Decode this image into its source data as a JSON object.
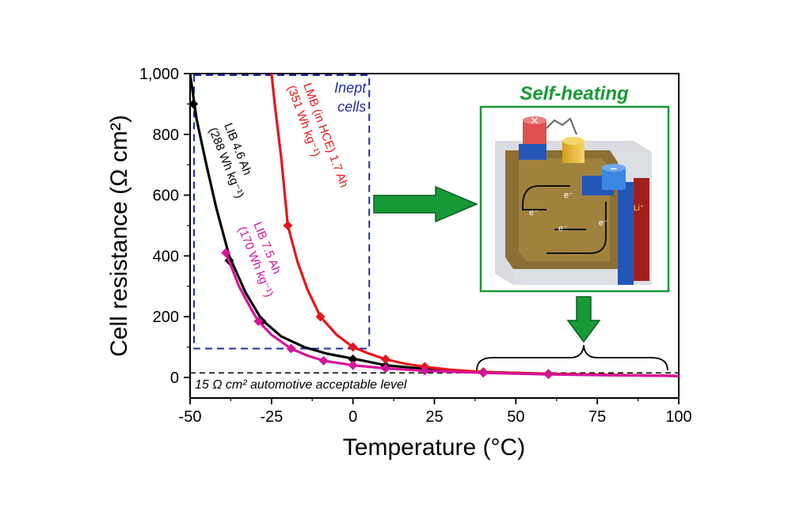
{
  "chart_data": {
    "type": "line",
    "xlabel": "Temperature (°C)",
    "ylabel": "Cell resistance (Ω cm²)",
    "xlim": [
      -50,
      100
    ],
    "ylim": [
      -50,
      1000
    ],
    "x_ticks": [
      "-50",
      "-25",
      "0",
      "25",
      "50",
      "75",
      "100"
    ],
    "x_tick_values": [
      -50,
      -25,
      0,
      25,
      50,
      75,
      100
    ],
    "y_ticks": [
      "0",
      "200",
      "400",
      "600",
      "800",
      "1,000"
    ],
    "y_tick_values": [
      0,
      200,
      400,
      600,
      800,
      1000
    ],
    "series": [
      {
        "name_lines": [
          "LIB 4.6 Ah",
          "(288 Wh kg⁻¹)"
        ],
        "color": "#000000",
        "marker": "diamond",
        "points": [
          [
            -49,
            900
          ],
          [
            -38,
            385
          ],
          [
            -28,
            185
          ],
          [
            0,
            60
          ],
          [
            10,
            38
          ],
          [
            22,
            28
          ],
          [
            40,
            18
          ],
          [
            60,
            12
          ]
        ],
        "curve": [
          [
            -50,
            1000
          ],
          [
            -48,
            850
          ],
          [
            -45,
            700
          ],
          [
            -42,
            560
          ],
          [
            -38,
            400
          ],
          [
            -33,
            280
          ],
          [
            -28,
            190
          ],
          [
            -22,
            135
          ],
          [
            -15,
            100
          ],
          [
            -8,
            78
          ],
          [
            0,
            62
          ],
          [
            10,
            40
          ],
          [
            22,
            28
          ],
          [
            40,
            18
          ],
          [
            60,
            12
          ],
          [
            80,
            8
          ],
          [
            100,
            5
          ]
        ]
      },
      {
        "name_lines": [
          "LMB (in HCE) 1.7 Ah",
          "(351 Wh kg⁻¹)"
        ],
        "color": "#e8141b",
        "marker": "diamond",
        "points": [
          [
            -20,
            500
          ],
          [
            -10,
            200
          ],
          [
            0,
            100
          ],
          [
            10,
            60
          ],
          [
            22,
            35
          ],
          [
            40,
            18
          ],
          [
            60,
            12
          ]
        ],
        "curve": [
          [
            -25,
            1000
          ],
          [
            -24,
            900
          ],
          [
            -22,
            720
          ],
          [
            -20,
            500
          ],
          [
            -17,
            380
          ],
          [
            -14,
            290
          ],
          [
            -10,
            200
          ],
          [
            -5,
            140
          ],
          [
            0,
            100
          ],
          [
            5,
            78
          ],
          [
            10,
            60
          ],
          [
            16,
            45
          ],
          [
            22,
            35
          ],
          [
            30,
            25
          ],
          [
            40,
            18
          ],
          [
            60,
            12
          ],
          [
            80,
            8
          ],
          [
            100,
            5
          ]
        ]
      },
      {
        "name_lines": [
          "LIB 7.5 Ah",
          "(170 Wh kg⁻¹)"
        ],
        "color": "#d4149c",
        "marker": "diamond",
        "points": [
          [
            -39,
            410
          ],
          [
            -29,
            185
          ],
          [
            -19,
            95
          ],
          [
            -9,
            55
          ],
          [
            0,
            40
          ],
          [
            10,
            30
          ],
          [
            22,
            22
          ],
          [
            40,
            15
          ],
          [
            60,
            10
          ]
        ],
        "curve": [
          [
            -39,
            410
          ],
          [
            -35,
            300
          ],
          [
            -31,
            220
          ],
          [
            -29,
            185
          ],
          [
            -25,
            140
          ],
          [
            -19,
            95
          ],
          [
            -14,
            72
          ],
          [
            -9,
            55
          ],
          [
            0,
            40
          ],
          [
            10,
            30
          ],
          [
            22,
            22
          ],
          [
            40,
            15
          ],
          [
            60,
            10
          ],
          [
            80,
            7
          ],
          [
            100,
            5
          ]
        ]
      }
    ],
    "reference_line": {
      "y": 15,
      "label": "15 Ω cm² automotive acceptable level"
    },
    "inept_box": {
      "x_range": [
        -50,
        5
      ],
      "y_range": [
        95,
        1000
      ],
      "label_lines": [
        "Inept",
        "cells"
      ]
    },
    "self_heating_label": "Self-heating",
    "colors": {
      "inept": "#1f2d9c",
      "self_heating": "#169a35",
      "arrow": "#169a35"
    },
    "inset_labels": {
      "electron": "e⁻",
      "lithium": "Li⁺"
    }
  }
}
